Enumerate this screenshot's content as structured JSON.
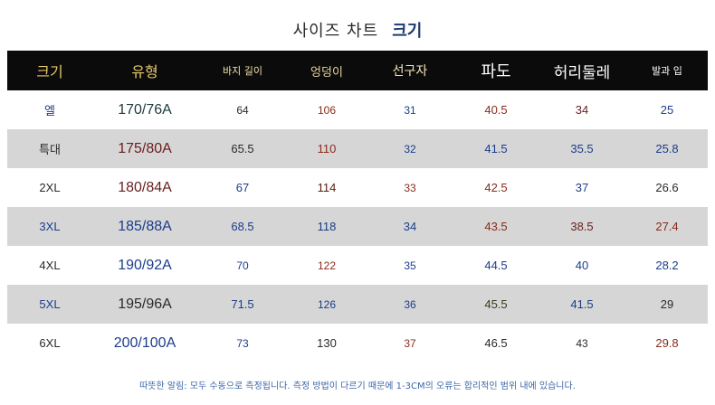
{
  "title": {
    "main": "사이즈 차트",
    "sub": "크기"
  },
  "headers": [
    "크기",
    "유형",
    "바지 길이",
    "엉덩이",
    "선구자",
    "파도",
    "허리둘레",
    "발과 입"
  ],
  "rows": [
    [
      "엘",
      "170/76A",
      "64",
      "106",
      "31",
      "40.5",
      "34",
      "25"
    ],
    [
      "특대",
      "175/80A",
      "65.5",
      "110",
      "32",
      "41.5",
      "35.5",
      "25.8"
    ],
    [
      "2XL",
      "180/84A",
      "67",
      "114",
      "33",
      "42.5",
      "37",
      "26.6"
    ],
    [
      "3XL",
      "185/88A",
      "68.5",
      "118",
      "34",
      "43.5",
      "38.5",
      "27.4"
    ],
    [
      "4XL",
      "190/92A",
      "70",
      "122",
      "35",
      "44.5",
      "40",
      "28.2"
    ],
    [
      "5XL",
      "195/96A",
      "71.5",
      "126",
      "36",
      "45.5",
      "41.5",
      "29"
    ],
    [
      "6XL",
      "200/100A",
      "73",
      "130",
      "37",
      "46.5",
      "43",
      "29.8"
    ]
  ],
  "colors": {
    "size": [
      "#1b3d8a",
      "#2a2a2a",
      "#2a2a2a",
      "#1b3d8a",
      "#2a2a2a",
      "#1b3d8a",
      "#2a2a2a"
    ],
    "type": [
      "#1f3a3a",
      "#6a1e1e",
      "#6a1e1e",
      "#1b3d8a",
      "#1b3d8a",
      "#2a2a2a",
      "#1b3d8a"
    ],
    "length": [
      "#2a2a2a",
      "#2a2a2a",
      "#1b3d8a",
      "#1b3d8a",
      "#1b3d8a",
      "#1b3d8a",
      "#1b3d8a"
    ],
    "hip": [
      "#8a2a1a",
      "#8a2a1a",
      "#5a1a0a",
      "#1b3d8a",
      "#8a2a1a",
      "#1b3d8a",
      "#2a2a2a"
    ],
    "rise": [
      "#1b3d8a",
      "#1b3d8a",
      "#8a2a1a",
      "#1b3d8a",
      "#1b3d8a",
      "#1b3d8a",
      "#8a2a1a"
    ],
    "thigh": [
      "#8a2a1a",
      "#1b3d8a",
      "#8a2a1a",
      "#8a2a1a",
      "#1b3d8a",
      "#3a3a1a",
      "#2a2a2a"
    ],
    "waist": [
      "#6a1e1e",
      "#1b3d8a",
      "#1b3d8a",
      "#6a1e1e",
      "#1b3d8a",
      "#1b3d8a",
      "#2a2a2a"
    ],
    "hem": [
      "#1b3d8a",
      "#1b3d8a",
      "#2a2a2a",
      "#8a2a1a",
      "#1b3d8a",
      "#2a2a2a",
      "#8a2a1a"
    ]
  },
  "note": "따뜻한 알림: 모두 수동으로 측정됩니다. 측정 방법이 다르기 때문에 1-3CM의 오류는 합리적인 범위 내에 있습니다."
}
